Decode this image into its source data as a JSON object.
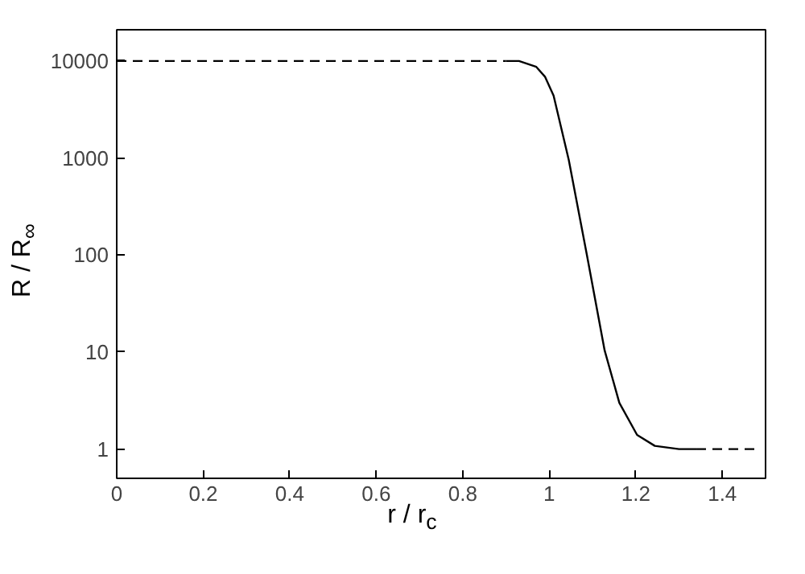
{
  "chart_data": {
    "type": "line",
    "xlabel": "r / r$_{c}$",
    "ylabel": "R / R$_{∞}$",
    "log": "y",
    "xlim": [
      0,
      1.5
    ],
    "ylim": [
      0.5,
      21000
    ],
    "xticks": [
      0,
      0.2,
      0.4,
      0.6,
      0.8,
      1,
      1.2,
      1.4
    ],
    "yticks": [
      1,
      10,
      100,
      1000,
      10000
    ],
    "grid": false,
    "series": [
      {
        "color": "#000000",
        "line_style": "dashed",
        "x": [
          0,
          0.9,
          1.1,
          1.34,
          1.48
        ],
        "values": [
          10000,
          10000,
          null,
          1,
          1
        ]
      },
      {
        "color": "#000000",
        "line_style": "solid",
        "x": [
          0.9,
          0.93,
          0.97,
          0.99,
          1.01,
          1.045,
          1.087,
          1.128,
          1.162,
          1.203,
          1.244,
          1.3,
          1.34
        ],
        "values": [
          10000,
          10000,
          8700,
          6900,
          4400,
          960,
          100,
          10.4,
          3.0,
          1.4,
          1.08,
          1.0,
          1.0
        ]
      }
    ]
  }
}
